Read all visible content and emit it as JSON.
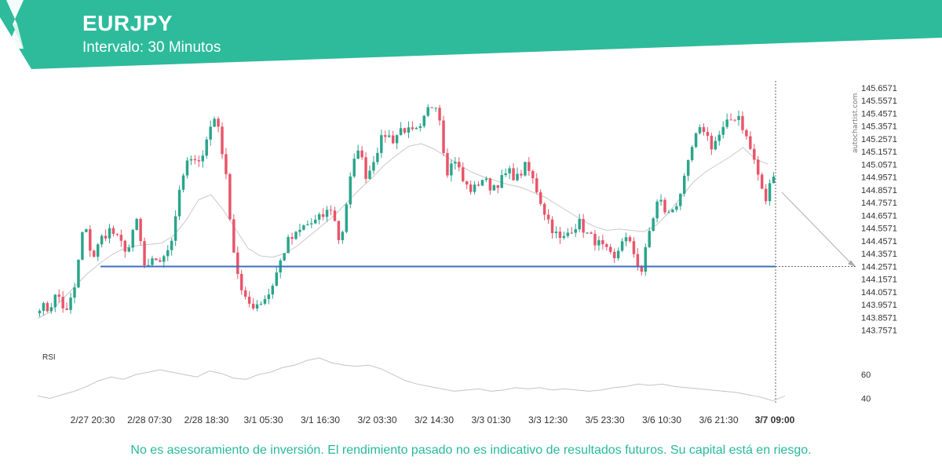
{
  "header": {
    "symbol": "EURJPY",
    "interval": "Intervalo: 30 Minutos",
    "brand_color": "#2dbb9c"
  },
  "watermark": "autochartist.com",
  "footer": {
    "disclaimer": "No es asesoramiento de inversión. El rendimiento pasado no es indicativo de resultados futuros. Su capital está en riesgo."
  },
  "chart_data": [
    {
      "type": "candlestick",
      "ylim": [
        143.7,
        145.7
      ],
      "y_ticks": [
        "145.6571",
        "145.5571",
        "145.4571",
        "145.3571",
        "145.2571",
        "145.1571",
        "145.0571",
        "144.9571",
        "144.8571",
        "144.7571",
        "144.6571",
        "144.5571",
        "144.4571",
        "144.3571",
        "144.2571",
        "144.1571",
        "144.0571",
        "143.9571",
        "143.8571",
        "143.7571"
      ],
      "x_ticks": [
        "2/27 20:30",
        "2/28 07:30",
        "2/28 18:30",
        "3/1 05:30",
        "3/1 16:30",
        "3/2 03:30",
        "3/2 14:30",
        "3/3 01:30",
        "3/3 12:30",
        "3/5 23:30",
        "3/6 10:30",
        "3/6 21:30",
        "3/7 09:00"
      ],
      "current_time_label": "3/7 09:00",
      "support_level": 144.2571,
      "support_start_label": "2/27 20:30",
      "price_path": [
        143.95,
        143.92,
        144.05,
        143.88,
        144.1,
        144.6,
        144.32,
        144.48,
        144.55,
        144.45,
        144.38,
        144.62,
        144.2,
        144.32,
        144.3,
        144.5,
        144.95,
        145.1,
        145.05,
        145.3,
        145.45,
        145.0,
        144.35,
        144.0,
        143.95,
        143.98,
        144.05,
        144.25,
        144.45,
        144.5,
        144.58,
        144.6,
        144.65,
        144.72,
        144.42,
        144.9,
        145.2,
        144.95,
        145.15,
        145.3,
        145.25,
        145.35,
        145.3,
        145.32,
        145.5,
        145.55,
        145.0,
        145.1,
        144.9,
        144.85,
        144.95,
        144.88,
        144.92,
        145.0,
        144.95,
        145.05,
        144.9,
        144.7,
        144.55,
        144.45,
        144.55,
        144.6,
        144.5,
        144.45,
        144.38,
        144.3,
        144.5,
        144.4,
        144.2,
        144.55,
        144.8,
        144.65,
        144.75,
        144.95,
        145.25,
        145.35,
        145.2,
        145.3,
        145.4,
        145.45,
        145.25,
        145.05,
        144.75,
        145.0
      ],
      "sma_path": [
        143.85,
        143.9,
        144.0,
        144.1,
        144.2,
        144.28,
        144.35,
        144.4,
        144.42,
        144.43,
        144.44,
        144.5,
        144.62,
        144.78,
        144.82,
        144.7,
        144.55,
        144.4,
        144.34,
        144.33,
        144.36,
        144.42,
        144.5,
        144.58,
        144.66,
        144.76,
        144.86,
        144.95,
        145.05,
        145.13,
        145.2,
        145.22,
        145.18,
        145.12,
        145.06,
        145.0,
        144.96,
        144.93,
        144.9,
        144.88,
        144.84,
        144.8,
        144.74,
        144.68,
        144.62,
        144.57,
        144.54,
        144.55,
        144.54,
        144.53,
        144.58,
        144.68,
        144.8,
        144.92,
        145.0,
        145.06,
        145.12,
        145.19,
        145.1,
        145.06
      ],
      "projection_end": 144.2571
    },
    {
      "type": "line",
      "title": "RSI",
      "ylim": [
        35,
        80
      ],
      "y_ticks": [
        60,
        40
      ],
      "values": [
        42,
        40,
        43,
        46,
        50,
        55,
        58,
        56,
        60,
        62,
        64,
        62,
        60,
        58,
        63,
        61,
        57,
        56,
        60,
        62,
        66,
        68,
        72,
        74,
        70,
        68,
        67,
        68,
        65,
        60,
        55,
        52,
        50,
        48,
        46,
        47,
        48,
        46,
        47,
        49,
        48,
        49,
        47,
        48,
        47,
        46,
        47,
        49,
        50,
        52,
        51,
        52,
        50,
        49,
        48,
        47,
        46,
        45,
        43,
        41,
        38,
        42
      ]
    }
  ]
}
